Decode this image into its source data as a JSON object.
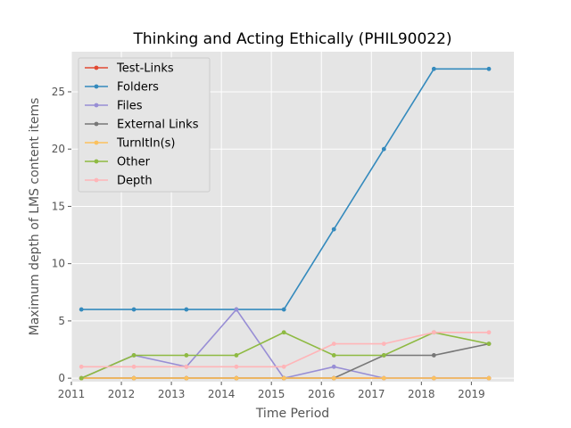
{
  "chart_data": {
    "type": "line",
    "title": "Thinking and Acting Ethically (PHIL90022)",
    "xlabel": "Time Period",
    "ylabel": "Maximum depth of LMS content items",
    "xlim": [
      2011.0,
      2019.85
    ],
    "ylim": [
      -0.3,
      28.5
    ],
    "x_ticks": [
      "2011",
      "2012",
      "2013",
      "2014",
      "2015",
      "2016",
      "2017",
      "2018",
      "2019"
    ],
    "y_ticks": [
      "0",
      "5",
      "10",
      "15",
      "20",
      "25"
    ],
    "grid": true,
    "legend_position": "upper-left",
    "x": [
      2011.2,
      2012.25,
      2013.3,
      2014.3,
      2015.25,
      2016.25,
      2017.25,
      2018.25,
      2019.35
    ],
    "series": [
      {
        "name": "Test-Links",
        "color": "#E24A33",
        "values": [
          0,
          0,
          0,
          0,
          0,
          0,
          0,
          0,
          0
        ]
      },
      {
        "name": "Folders",
        "color": "#348ABD",
        "values": [
          6,
          6,
          6,
          6,
          6,
          13,
          20,
          27,
          27
        ]
      },
      {
        "name": "Files",
        "color": "#988ED5",
        "values": [
          0,
          2,
          1,
          6,
          0,
          1,
          0,
          0,
          0
        ]
      },
      {
        "name": "External Links",
        "color": "#777777",
        "values": [
          0,
          0,
          0,
          0,
          0,
          0,
          2,
          2,
          3
        ]
      },
      {
        "name": "TurnItIn(s)",
        "color": "#FBC15E",
        "values": [
          0,
          0,
          0,
          0,
          0,
          0,
          0,
          0,
          0
        ]
      },
      {
        "name": "Other",
        "color": "#8EBA42",
        "values": [
          0,
          2,
          2,
          2,
          4,
          2,
          2,
          4,
          3
        ]
      },
      {
        "name": "Depth",
        "color": "#FFB5B8",
        "values": [
          1,
          1,
          1,
          1,
          1,
          3,
          3,
          4,
          4
        ]
      }
    ]
  }
}
